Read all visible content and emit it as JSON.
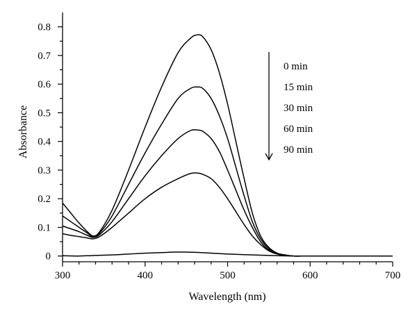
{
  "chart_data": {
    "type": "line",
    "title": "",
    "xlabel": "Wavelength (nm)",
    "ylabel": "Absorbance",
    "xlim": [
      300,
      700
    ],
    "ylim": [
      -0.02,
      0.85
    ],
    "xticks": [
      300,
      400,
      500,
      600,
      700
    ],
    "yticks": [
      0,
      0.1,
      0.2,
      0.3,
      0.4,
      0.5,
      0.6,
      0.7,
      0.8
    ],
    "yticklabels": [
      "0",
      "0.1",
      "0.2",
      "0.3",
      "0.4",
      "0.5",
      "0.6",
      "0.7",
      "0.8"
    ],
    "grid": false,
    "legend_placement": "top-right",
    "legend_arrow": "down",
    "series": [
      {
        "name": "0 min",
        "x": [
          300,
          310,
          320,
          330,
          337,
          345,
          360,
          380,
          400,
          420,
          440,
          455,
          463,
          470,
          480,
          490,
          500,
          510,
          520,
          530,
          540,
          550,
          560,
          570,
          580,
          600,
          650,
          700
        ],
        "y": [
          0.185,
          0.15,
          0.115,
          0.085,
          0.07,
          0.085,
          0.16,
          0.3,
          0.45,
          0.59,
          0.71,
          0.76,
          0.772,
          0.765,
          0.72,
          0.64,
          0.53,
          0.4,
          0.27,
          0.15,
          0.07,
          0.03,
          0.01,
          0.004,
          0,
          0,
          0,
          0
        ]
      },
      {
        "name": "15 min",
        "x": [
          300,
          310,
          320,
          330,
          337,
          345,
          360,
          380,
          400,
          420,
          440,
          455,
          463,
          470,
          480,
          490,
          500,
          510,
          520,
          530,
          540,
          550,
          560,
          570,
          580,
          600,
          650,
          700
        ],
        "y": [
          0.14,
          0.12,
          0.1,
          0.08,
          0.067,
          0.08,
          0.14,
          0.25,
          0.36,
          0.46,
          0.55,
          0.585,
          0.59,
          0.585,
          0.55,
          0.49,
          0.41,
          0.31,
          0.21,
          0.12,
          0.06,
          0.025,
          0.008,
          0.003,
          0,
          0,
          0,
          0
        ]
      },
      {
        "name": "30 min",
        "x": [
          300,
          310,
          320,
          330,
          337,
          345,
          360,
          380,
          400,
          420,
          440,
          455,
          463,
          470,
          480,
          490,
          500,
          510,
          520,
          530,
          540,
          550,
          560,
          570,
          580,
          600,
          650,
          700
        ],
        "y": [
          0.105,
          0.095,
          0.085,
          0.072,
          0.065,
          0.075,
          0.12,
          0.2,
          0.28,
          0.35,
          0.41,
          0.438,
          0.44,
          0.435,
          0.41,
          0.365,
          0.3,
          0.23,
          0.16,
          0.1,
          0.05,
          0.02,
          0.008,
          0.003,
          0,
          0,
          0,
          0
        ]
      },
      {
        "name": "60 min",
        "x": [
          300,
          310,
          320,
          330,
          337,
          345,
          360,
          380,
          400,
          420,
          440,
          455,
          463,
          470,
          480,
          490,
          500,
          510,
          520,
          530,
          540,
          550,
          560,
          570,
          580,
          600,
          650,
          700
        ],
        "y": [
          0.078,
          0.072,
          0.068,
          0.063,
          0.06,
          0.068,
          0.1,
          0.15,
          0.2,
          0.24,
          0.27,
          0.288,
          0.29,
          0.285,
          0.27,
          0.24,
          0.2,
          0.155,
          0.11,
          0.07,
          0.04,
          0.018,
          0.007,
          0.002,
          0,
          0,
          0,
          0
        ]
      },
      {
        "name": "90 min",
        "x": [
          300,
          320,
          340,
          360,
          380,
          400,
          420,
          440,
          460,
          480,
          500,
          520,
          540,
          560,
          580,
          600,
          650,
          700
        ],
        "y": [
          0.001,
          0,
          0.002,
          0.004,
          0.007,
          0.01,
          0.012,
          0.014,
          0.013,
          0.01,
          0.007,
          0.005,
          0.003,
          0.001,
          0,
          0,
          0,
          0
        ]
      }
    ]
  }
}
